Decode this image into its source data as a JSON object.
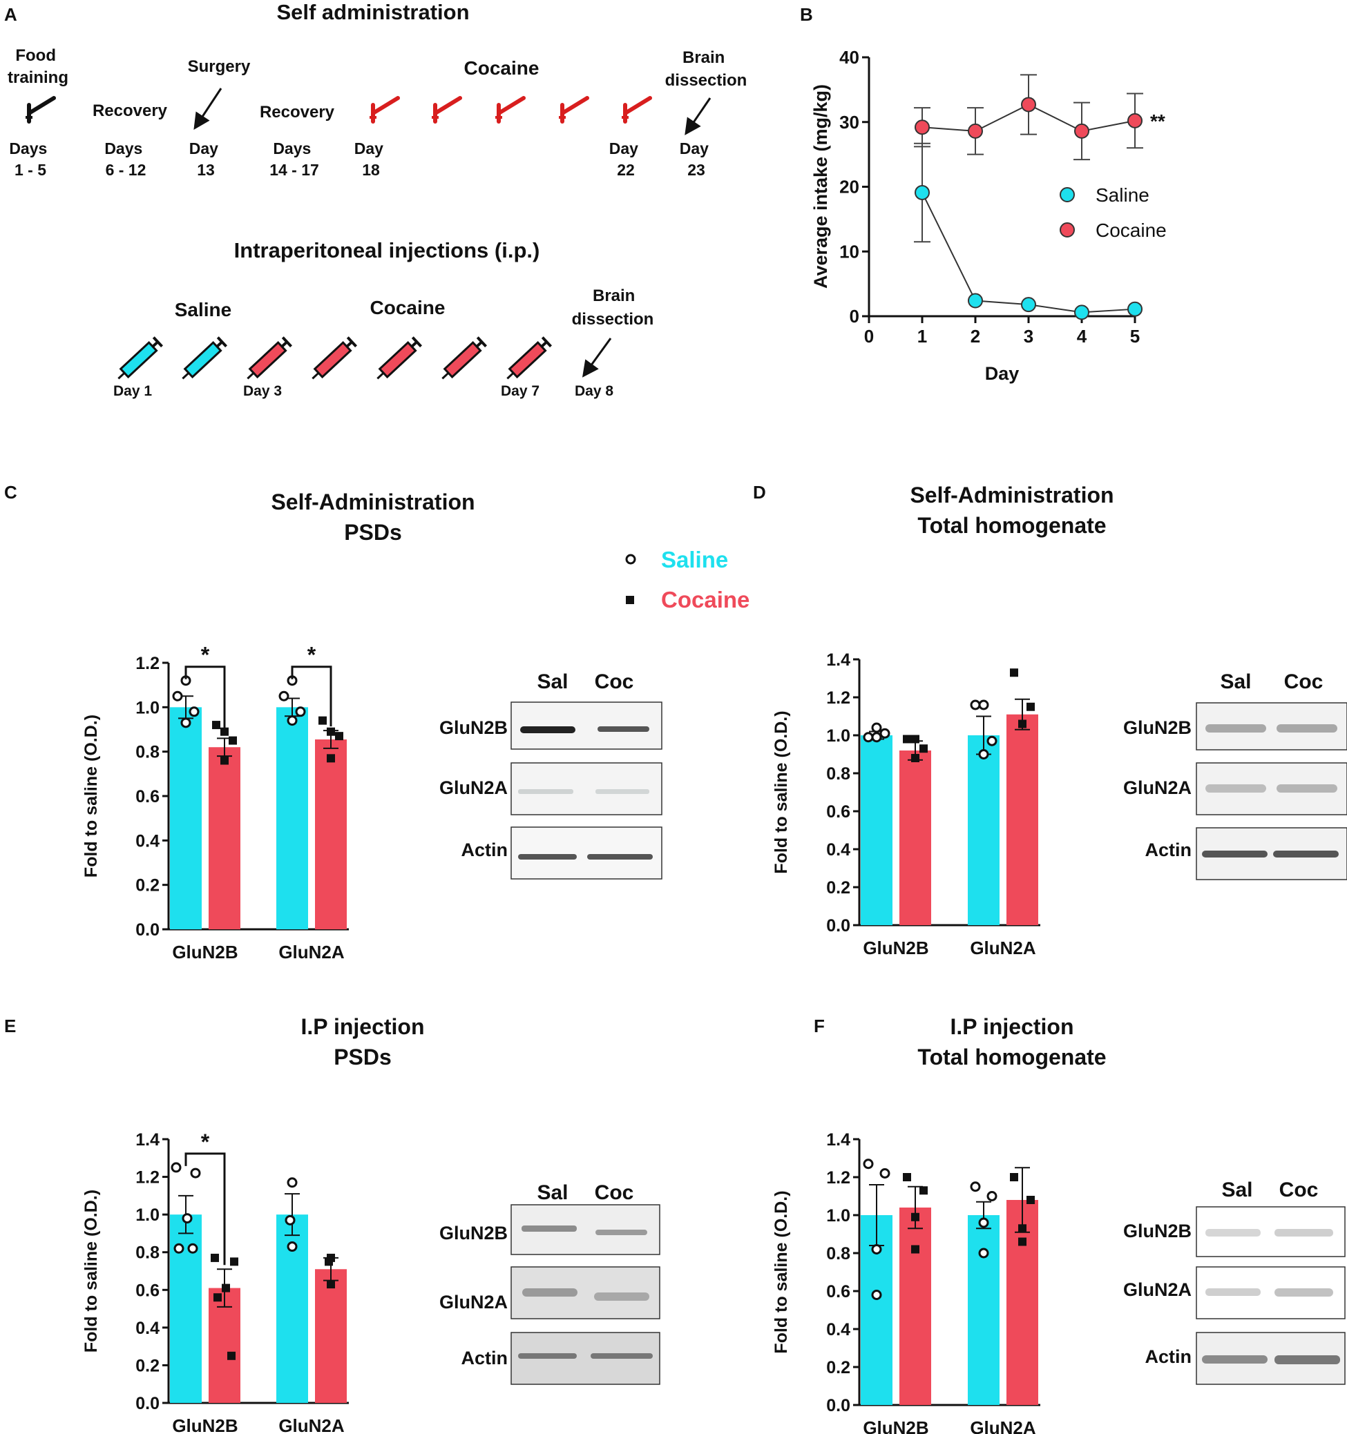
{
  "colors": {
    "saline": "#1ee0ee",
    "cocaine": "#ef4a5a",
    "ink": "#111111",
    "timeline_red": "#d81e1e"
  },
  "panel_letters": {
    "A": "A",
    "B": "B",
    "C": "C",
    "D": "D",
    "E": "E",
    "F": "F"
  },
  "panel_a": {
    "title_sa": "Self administration",
    "food_training": [
      "Food",
      "training"
    ],
    "food_days": [
      "Days",
      "1 - 5"
    ],
    "recovery1": "Recovery",
    "recovery1_days": [
      "Days",
      "6 - 12"
    ],
    "surgery": "Surgery",
    "surgery_day": [
      "Day",
      "13"
    ],
    "recovery2": "Recovery",
    "recovery2_days": [
      "Days",
      "14 - 17"
    ],
    "cocaine": "Cocaine",
    "day18": [
      "Day",
      "18"
    ],
    "day22": [
      "Day",
      "22"
    ],
    "dissection": [
      "Brain",
      "dissection"
    ],
    "day23": [
      "Day",
      "23"
    ],
    "title_ip": "Intraperitoneal injections (i.p.)",
    "ip_saline": "Saline",
    "ip_cocaine": "Cocaine",
    "ip_dissection": [
      "Brain",
      "dissection"
    ],
    "ip_day1": "Day 1",
    "ip_day3": "Day 3",
    "ip_day7": "Day 7",
    "ip_day8": "Day 8"
  },
  "legend": {
    "saline": "Saline",
    "cocaine": "Cocaine"
  },
  "blots": {
    "sal": "Sal",
    "coc": "Coc",
    "glun2b": "GluN2B",
    "glun2a": "GluN2A",
    "actin": "Actin"
  },
  "chart_data": [
    {
      "id": "B",
      "type": "line",
      "xlabel": "Day",
      "ylabel": "Average intake (mg/kg)",
      "xlim": [
        0,
        5
      ],
      "ylim": [
        0,
        40
      ],
      "xticks": [
        0,
        1,
        2,
        3,
        4,
        5
      ],
      "yticks": [
        0,
        10,
        20,
        30,
        40
      ],
      "significance": "**",
      "legend": [
        "Saline",
        "Cocaine"
      ],
      "series": [
        {
          "name": "Cocaine",
          "x": [
            1,
            2,
            3,
            4,
            5
          ],
          "y": [
            29.2,
            28.6,
            32.7,
            28.6,
            30.2
          ],
          "err": [
            3.0,
            3.6,
            4.6,
            4.4,
            4.2
          ]
        },
        {
          "name": "Saline",
          "x": [
            1,
            2,
            3,
            4,
            5
          ],
          "y": [
            19.1,
            2.4,
            1.8,
            0.6,
            1.1
          ],
          "err": [
            7.6,
            0,
            0,
            0,
            0
          ]
        }
      ]
    },
    {
      "id": "C",
      "type": "bar",
      "title": [
        "Self-Administration",
        "PSDs"
      ],
      "ylabel": "Fold to saline (O.D.)",
      "ylim": [
        0,
        1.2
      ],
      "yticks": [
        "0.0",
        "0.2",
        "0.4",
        "0.6",
        "0.8",
        "1.0",
        "1.2"
      ],
      "categories": [
        "GluN2B",
        "GluN2A"
      ],
      "series": [
        {
          "name": "Saline",
          "values": [
            1.0,
            1.0
          ],
          "err": [
            0.05,
            0.04
          ],
          "points": [
            [
              1.05,
              0.98,
              0.93,
              1.12
            ],
            [
              1.05,
              0.98,
              0.94,
              1.12
            ]
          ]
        },
        {
          "name": "Cocaine",
          "values": [
            0.82,
            0.855
          ],
          "err": [
            0.04,
            0.04
          ],
          "points": [
            [
              0.92,
              0.85,
              0.76,
              0.89
            ],
            [
              0.94,
              0.87,
              0.77,
              0.89
            ]
          ]
        }
      ],
      "significance": [
        {
          "label": "*",
          "category": "GluN2B"
        },
        {
          "label": "*",
          "category": "GluN2A"
        }
      ]
    },
    {
      "id": "D",
      "type": "bar",
      "title": [
        "Self-Administration",
        "Total homogenate"
      ],
      "ylabel": "Fold to saline (O.D.)",
      "ylim": [
        0,
        1.4
      ],
      "yticks": [
        "0.0",
        "0.2",
        "0.4",
        "0.6",
        "0.8",
        "1.0",
        "1.2",
        "1.4"
      ],
      "categories": [
        "GluN2B",
        "GluN2A"
      ],
      "series": [
        {
          "name": "Saline",
          "values": [
            1.0,
            1.0
          ],
          "err": [
            0.02,
            0.1
          ],
          "points": [
            [
              0.99,
              1.01,
              1.04,
              0.99
            ],
            [
              1.16,
              0.97,
              0.9,
              1.16
            ]
          ]
        },
        {
          "name": "Cocaine",
          "values": [
            0.92,
            1.11
          ],
          "err": [
            0.05,
            0.08
          ],
          "points": [
            [
              0.98,
              0.93,
              0.88,
              0.98
            ],
            [
              1.33,
              1.15,
              1.06,
              1.06
            ]
          ]
        }
      ]
    },
    {
      "id": "E",
      "type": "bar",
      "title": [
        "I.P injection",
        "PSDs"
      ],
      "ylabel": "Fold to saline (O.D.)",
      "ylim": [
        0,
        1.4
      ],
      "yticks": [
        "0.0",
        "0.2",
        "0.4",
        "0.6",
        "0.8",
        "1.0",
        "1.2",
        "1.4"
      ],
      "categories": [
        "GluN2B",
        "GluN2A"
      ],
      "series": [
        {
          "name": "Saline",
          "values": [
            1.0,
            1.0
          ],
          "err": [
            0.1,
            0.11
          ],
          "points": [
            [
              1.25,
              1.22,
              0.98,
              0.82,
              0.82
            ],
            [
              1.17,
              0.97,
              0.83
            ]
          ]
        },
        {
          "name": "Cocaine",
          "values": [
            0.61,
            0.71
          ],
          "err": [
            0.1,
            0.06
          ],
          "points": [
            [
              0.77,
              0.75,
              0.61,
              0.56,
              0.25
            ],
            [
              0.77,
              0.75,
              0.63
            ]
          ]
        }
      ],
      "significance": [
        {
          "label": "*",
          "category": "GluN2B"
        }
      ]
    },
    {
      "id": "F",
      "type": "bar",
      "title": [
        "I.P injection",
        "Total homogenate"
      ],
      "ylabel": "Fold to saline (O.D.)",
      "ylim": [
        0,
        1.4
      ],
      "yticks": [
        "0.0",
        "0.2",
        "0.4",
        "0.6",
        "0.8",
        "1.0",
        "1.2",
        "1.4"
      ],
      "categories": [
        "GluN2B",
        "GluN2A"
      ],
      "series": [
        {
          "name": "Saline",
          "values": [
            1.0,
            1.0
          ],
          "err": [
            0.16,
            0.07
          ],
          "points": [
            [
              1.27,
              1.22,
              0.82,
              0.58
            ],
            [
              1.15,
              1.1,
              0.96,
              0.8
            ]
          ]
        },
        {
          "name": "Cocaine",
          "values": [
            1.04,
            1.08
          ],
          "err": [
            0.11,
            0.17
          ],
          "points": [
            [
              1.2,
              1.13,
              0.99,
              0.82
            ],
            [
              1.2,
              1.08,
              0.93,
              0.86
            ]
          ]
        }
      ]
    }
  ]
}
